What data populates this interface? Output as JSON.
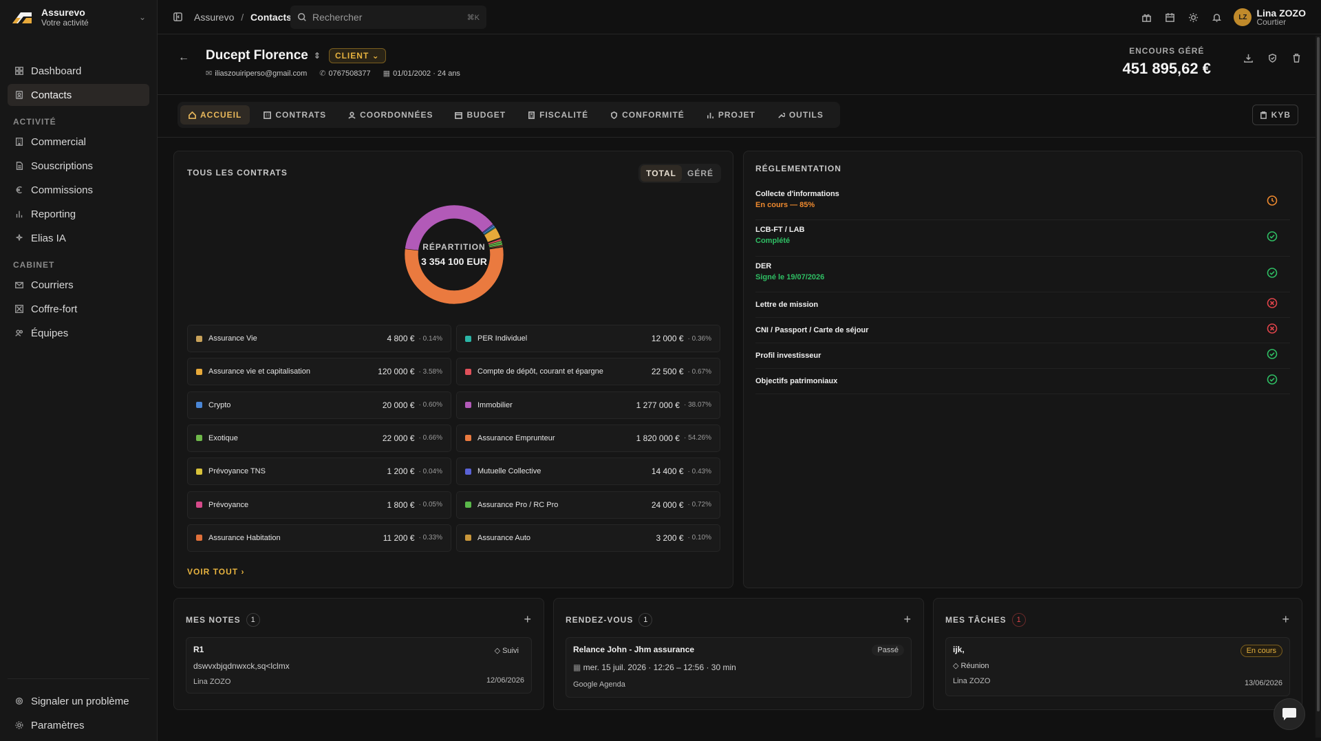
{
  "app": {
    "name": "Assurevo",
    "subtitle": "Votre activité"
  },
  "sidebar": {
    "main": [
      {
        "label": "Dashboard",
        "icon": "dashboard-icon"
      },
      {
        "label": "Contacts",
        "icon": "contacts-icon",
        "active": true
      }
    ],
    "section_activite": "ACTIVITÉ",
    "activite": [
      {
        "label": "Commercial",
        "icon": "building-icon"
      },
      {
        "label": "Souscriptions",
        "icon": "document-icon"
      },
      {
        "label": "Commissions",
        "icon": "euro-icon"
      },
      {
        "label": "Reporting",
        "icon": "bar-chart-icon"
      },
      {
        "label": "Elias IA",
        "icon": "sparkles-icon"
      }
    ],
    "section_cabinet": "CABINET",
    "cabinet": [
      {
        "label": "Courriers",
        "icon": "mail-icon"
      },
      {
        "label": "Coffre-fort",
        "icon": "safe-icon"
      },
      {
        "label": "Équipes",
        "icon": "users-icon"
      }
    ],
    "bottom": [
      {
        "label": "Signaler un problème",
        "icon": "bug-icon"
      },
      {
        "label": "Paramètres",
        "icon": "gear-icon"
      }
    ]
  },
  "topbar": {
    "breadcrumb_root": "Assurevo",
    "breadcrumb_sep": "/",
    "breadcrumb_current": "Contacts",
    "search_placeholder": "Rechercher",
    "search_shortcut": "⌘K",
    "user_initials": "LZ",
    "user_name": "Lina ZOZO",
    "user_role": "Courtier"
  },
  "contact": {
    "name": "Ducept Florence",
    "status": "CLIENT",
    "email": "iliaszouiriperso@gmail.com",
    "phone": "0767508377",
    "birth": "01/01/2002 · 24 ans",
    "encours_label": "ENCOURS GÉRÉ",
    "encours_value": "451 895,62 €"
  },
  "tabs": [
    "ACCUEIL",
    "CONTRATS",
    "COORDONNÉES",
    "BUDGET",
    "FISCALITÉ",
    "CONFORMITÉ",
    "PROJET",
    "OUTILS"
  ],
  "kyb_label": "KYB",
  "contracts": {
    "title": "TOUS LES CONTRATS",
    "toggle": [
      "TOTAL",
      "GÉRÉ"
    ],
    "center_label": "RÉPARTITION",
    "center_value": "3 354 100 EUR",
    "voir_tout": "VOIR TOUT",
    "items": [
      {
        "name": "Assurance Vie",
        "amount": "4 800 €",
        "pct": "· 0.14%",
        "color": "#c8a25a"
      },
      {
        "name": "PER Individuel",
        "amount": "12 000 €",
        "pct": "· 0.36%",
        "color": "#2bb5a6"
      },
      {
        "name": "Assurance vie et capitalisation",
        "amount": "120 000 €",
        "pct": "· 3.58%",
        "color": "#e7a93a"
      },
      {
        "name": "Compte de dépôt, courant et épargne",
        "amount": "22 500 €",
        "pct": "· 0.67%",
        "color": "#e0505a"
      },
      {
        "name": "Crypto",
        "amount": "20 000 €",
        "pct": "· 0.60%",
        "color": "#4a86d6"
      },
      {
        "name": "Immobilier",
        "amount": "1 277 000 €",
        "pct": "· 38.07%",
        "color": "#b25ab8"
      },
      {
        "name": "Exotique",
        "amount": "22 000 €",
        "pct": "· 0.66%",
        "color": "#6fb84a"
      },
      {
        "name": "Assurance Emprunteur",
        "amount": "1 820 000 €",
        "pct": "· 54.26%",
        "color": "#ea7a3f"
      },
      {
        "name": "Prévoyance TNS",
        "amount": "1 200 €",
        "pct": "· 0.04%",
        "color": "#d8c23a"
      },
      {
        "name": "Mutuelle Collective",
        "amount": "14 400 €",
        "pct": "· 0.43%",
        "color": "#5a62d6"
      },
      {
        "name": "Prévoyance",
        "amount": "1 800 €",
        "pct": "· 0.05%",
        "color": "#d64a8a"
      },
      {
        "name": "Assurance Pro / RC Pro",
        "amount": "24 000 €",
        "pct": "· 0.72%",
        "color": "#5ab84a"
      },
      {
        "name": "Assurance Habitation",
        "amount": "11 200 €",
        "pct": "· 0.33%",
        "color": "#e0703a"
      },
      {
        "name": "Assurance Auto",
        "amount": "3 200 €",
        "pct": "· 0.10%",
        "color": "#c8963a"
      }
    ]
  },
  "chart_data": {
    "type": "pie",
    "categories": [
      "Assurance Vie",
      "PER Individuel",
      "Assurance vie et capitalisation",
      "Compte de dépôt, courant et épargne",
      "Crypto",
      "Immobilier",
      "Exotique",
      "Assurance Emprunteur",
      "Prévoyance TNS",
      "Mutuelle Collective",
      "Prévoyance",
      "Assurance Pro / RC Pro",
      "Assurance Habitation",
      "Assurance Auto"
    ],
    "values": [
      4800,
      12000,
      120000,
      22500,
      20000,
      1277000,
      22000,
      1820000,
      1200,
      14400,
      1800,
      24000,
      11200,
      3200
    ],
    "title": "TOUS LES CONTRATS"
  },
  "reglementation": {
    "title": "RÉGLEMENTATION",
    "items": [
      {
        "title": "Collecte d'informations",
        "sub": "En cours — 85%",
        "sub_color": "#ef8a2f",
        "status": "clock-icon",
        "status_color": "#ef8a2f"
      },
      {
        "title": "LCB-FT / LAB",
        "sub": "Complété",
        "sub_color": "#2fbf64",
        "status": "check-circle-icon",
        "status_color": "#2fbf64"
      },
      {
        "title": "DER",
        "sub": "Signé le 19/07/2026",
        "sub_color": "#2fbf64",
        "status": "check-circle-icon",
        "status_color": "#2fbf64"
      },
      {
        "title": "Lettre de mission",
        "sub": "",
        "status": "x-circle-icon",
        "status_color": "#e0444a"
      },
      {
        "title": "CNI / Passport / Carte de séjour",
        "sub": "",
        "status": "x-circle-icon",
        "status_color": "#e0444a"
      },
      {
        "title": "Profil investisseur",
        "sub": "",
        "status": "check-circle-icon",
        "status_color": "#2fbf64"
      },
      {
        "title": "Objectifs patrimoniaux",
        "sub": "",
        "status": "check-circle-icon",
        "status_color": "#2fbf64"
      }
    ]
  },
  "notes": {
    "title": "MES NOTES",
    "count": "1",
    "item": {
      "title": "R1",
      "tag": "Suivi",
      "body": "dswvxbjqdnwxck,sq<lclmx",
      "author": "Lina ZOZO",
      "date": "12/06/2026"
    }
  },
  "rdv": {
    "title": "RENDEZ-VOUS",
    "count": "1",
    "item": {
      "title": "Relance John - Jhm assurance",
      "status": "Passé",
      "when": "mer. 15 juil. 2026 · 12:26 – 12:56 · 30 min",
      "source": "Google Agenda"
    }
  },
  "tasks": {
    "title": "MES TÂCHES",
    "count": "1",
    "item": {
      "title": "ijk,",
      "status": "En cours",
      "tag": "Réunion",
      "author": "Lina ZOZO",
      "date": "13/06/2026"
    }
  }
}
